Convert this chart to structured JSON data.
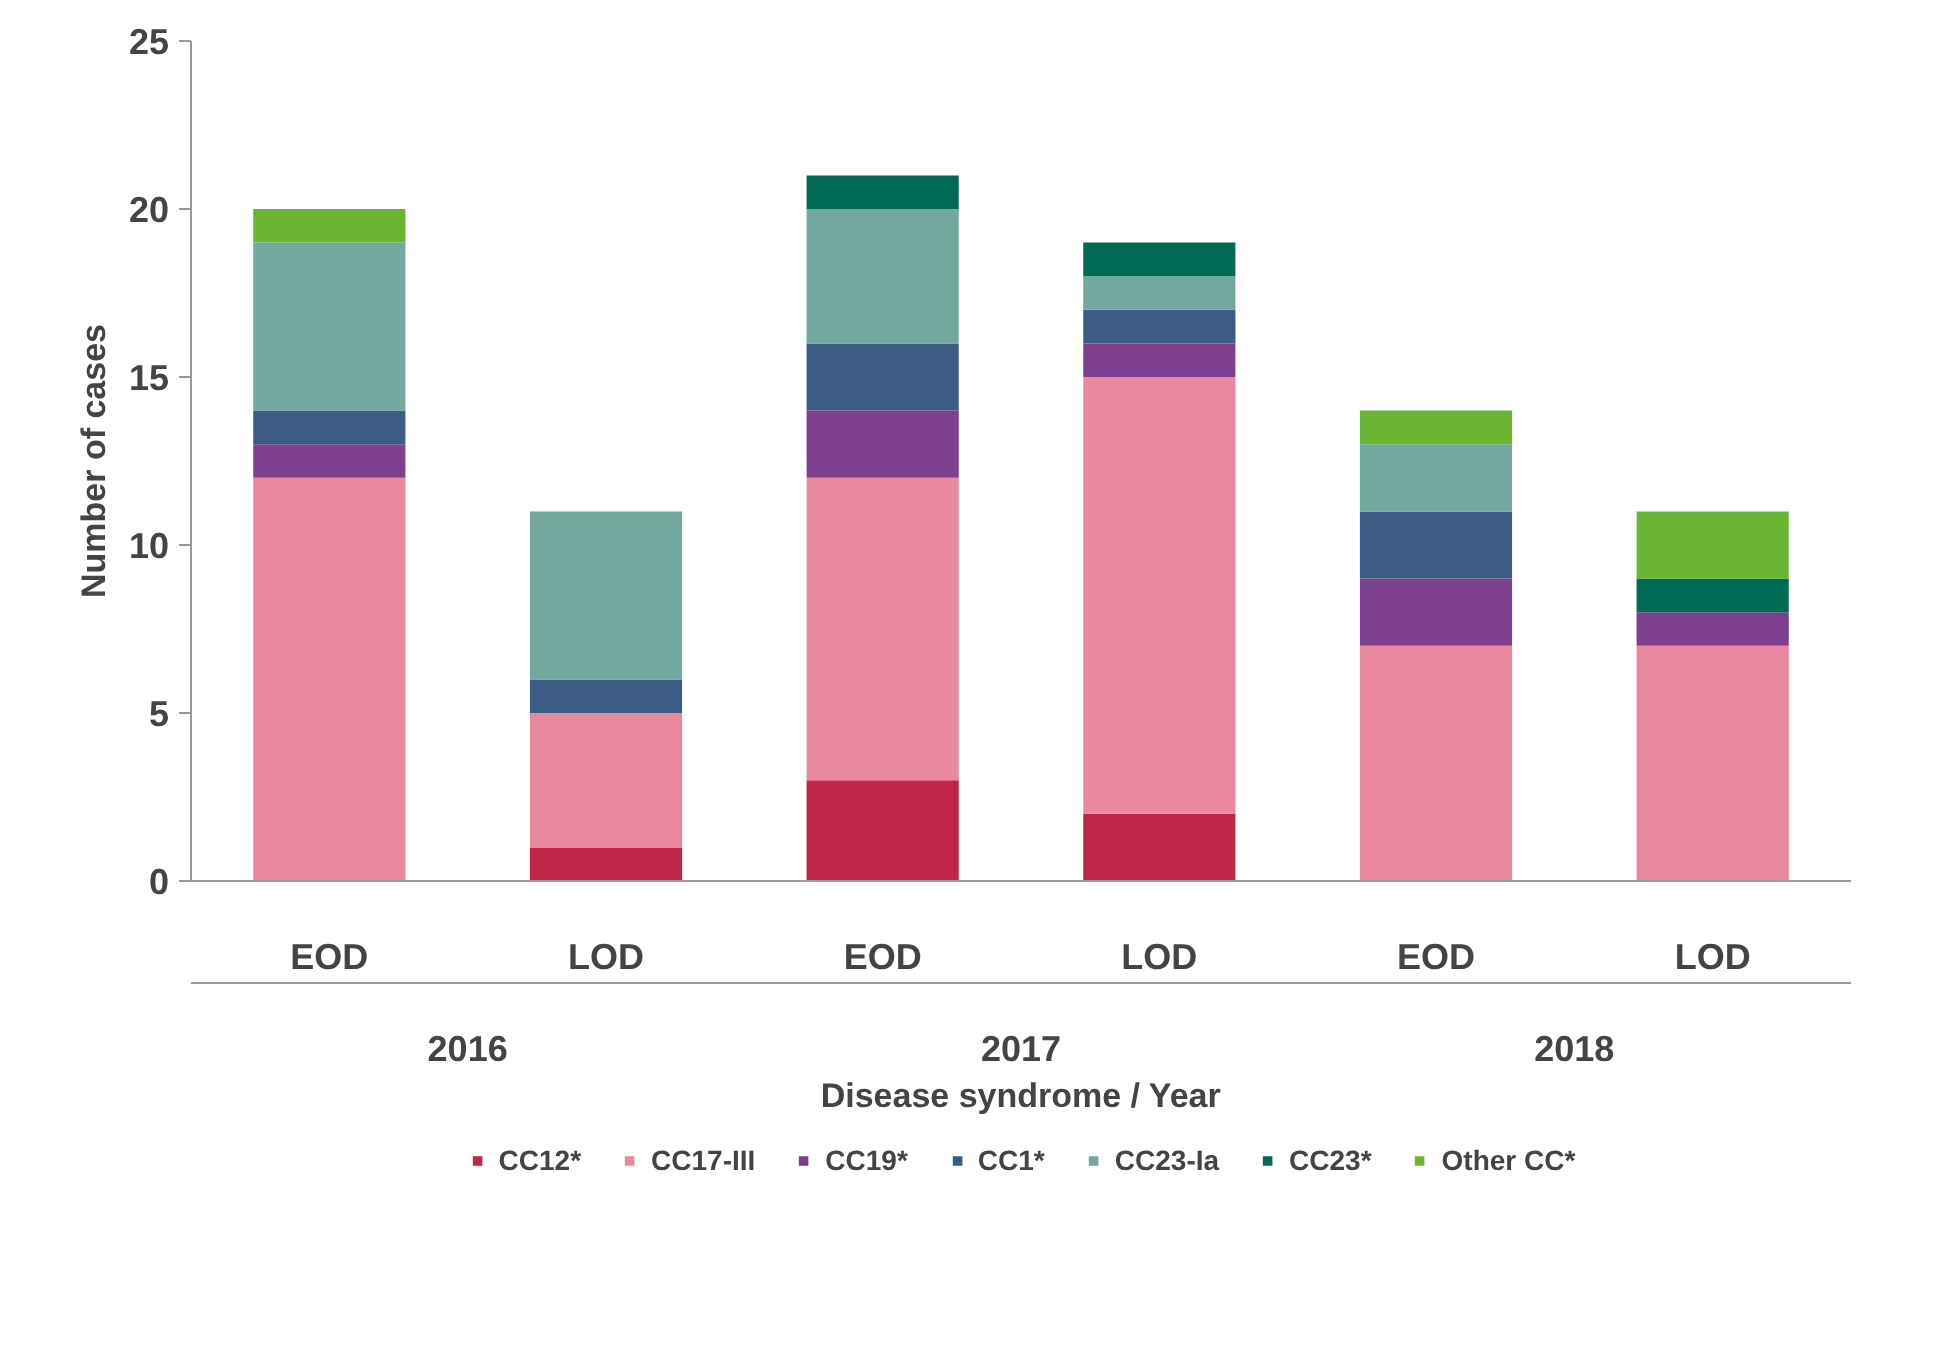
{
  "chart_data": {
    "type": "bar",
    "stacked": true,
    "xlabel": "Disease syndrome / Year",
    "ylabel": "Number of cases",
    "categories": [
      "EOD",
      "LOD",
      "EOD",
      "LOD",
      "EOD",
      "LOD"
    ],
    "annotations": [
      "2016",
      "2017",
      "2018"
    ],
    "ylim": [
      0,
      25
    ],
    "yticks": [
      0,
      5,
      10,
      15,
      20,
      25
    ],
    "grid": false,
    "legend": "bottom",
    "series": [
      {
        "name": "CC12*",
        "color": "#c0254a",
        "values": [
          0,
          1,
          3,
          2,
          0,
          0
        ]
      },
      {
        "name": "CC17-III",
        "color": "#ea889f",
        "values": [
          12,
          4,
          9,
          13,
          7,
          7
        ]
      },
      {
        "name": "CC19*",
        "color": "#7f3f8f",
        "values": [
          1,
          0,
          2,
          1,
          2,
          1
        ]
      },
      {
        "name": "CC1*",
        "color": "#3d5c85",
        "values": [
          1,
          1,
          2,
          1,
          2,
          0
        ]
      },
      {
        "name": "CC23-Ia",
        "color": "#72a89d",
        "values": [
          5,
          5,
          4,
          1,
          2,
          0
        ]
      },
      {
        "name": "CC23*",
        "color": "#006b55",
        "values": [
          0,
          0,
          1,
          1,
          0,
          1
        ]
      },
      {
        "name": "Other CC*",
        "color": "#6bb534",
        "values": [
          1,
          0,
          0,
          0,
          1,
          2
        ]
      }
    ]
  }
}
